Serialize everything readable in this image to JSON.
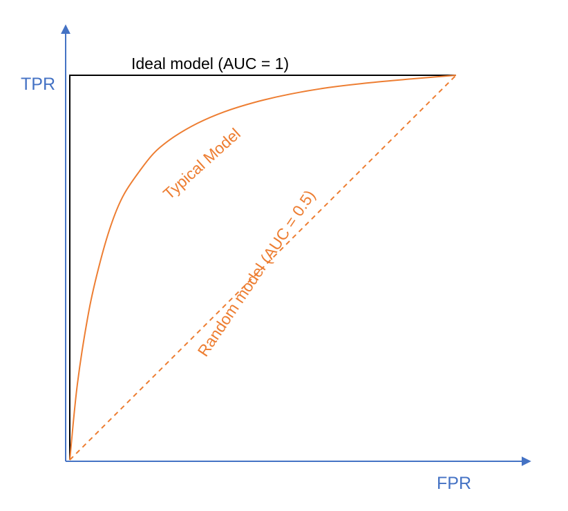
{
  "chart_data": {
    "type": "line",
    "title": "",
    "xlabel": "FPR",
    "ylabel": "TPR",
    "xlim": [
      0,
      1
    ],
    "ylim": [
      0,
      1
    ],
    "grid": false,
    "legend": "none",
    "colors": {
      "axis": "#4472C4",
      "ideal": "#000000",
      "typical": "#ED7D31",
      "random": "#ED7D31"
    },
    "series": [
      {
        "name": "Ideal model (AUC = 1)",
        "style": "solid",
        "x": [
          0,
          0,
          1
        ],
        "y": [
          0,
          1,
          1
        ]
      },
      {
        "name": "Typical Model",
        "style": "solid",
        "x": [
          0,
          0.02,
          0.05,
          0.08,
          0.11,
          0.14,
          0.18,
          0.22,
          0.27,
          0.33,
          0.4,
          0.48,
          0.57,
          0.67,
          0.78,
          0.89,
          1.0
        ],
        "y": [
          0,
          0.2,
          0.39,
          0.52,
          0.62,
          0.69,
          0.75,
          0.8,
          0.84,
          0.875,
          0.905,
          0.93,
          0.951,
          0.968,
          0.981,
          0.991,
          1.0
        ]
      },
      {
        "name": "Random model (AUC = 0.5)",
        "style": "dashed",
        "x": [
          0,
          1
        ],
        "y": [
          0,
          1
        ]
      }
    ]
  }
}
